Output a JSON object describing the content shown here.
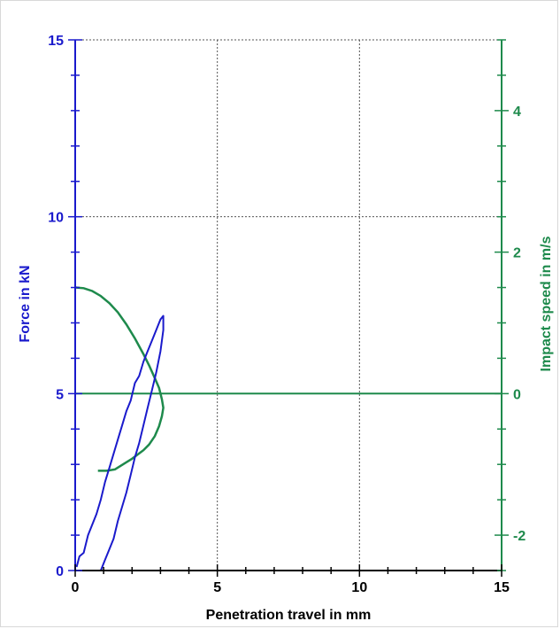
{
  "chart_data": {
    "type": "line",
    "title": "",
    "xlabel": "Penetration travel in mm",
    "ylabel": "Force in kN",
    "y2label": "Impact speed in m/s",
    "xlim": [
      0,
      15
    ],
    "ylim": [
      0,
      15
    ],
    "y2lim": [
      -2.5,
      5.0
    ],
    "x_ticks": [
      0,
      5,
      10,
      15
    ],
    "y_ticks": [
      0,
      5,
      10,
      15
    ],
    "y2_ticks": [
      -2,
      0,
      2,
      4
    ],
    "grid": true,
    "colors": {
      "force": "#1a1acc",
      "speed": "#1e8a4c",
      "grid": "#555555"
    },
    "series": [
      {
        "axis": "left",
        "x": [
          0.05,
          0.15,
          0.3,
          0.45,
          0.6,
          0.75,
          0.9,
          1.05,
          1.2,
          1.35,
          1.5,
          1.65,
          1.8,
          1.95,
          2.1,
          2.25,
          2.4,
          2.55,
          2.7,
          2.85,
          3.0,
          3.1,
          3.1,
          3.0,
          2.85,
          2.7,
          2.55,
          2.4,
          2.25,
          2.1,
          1.95,
          1.8,
          1.65,
          1.5,
          1.35,
          1.2,
          1.05,
          0.9
        ],
        "y": [
          0.1,
          0.4,
          0.5,
          1.0,
          1.3,
          1.6,
          2.0,
          2.5,
          2.9,
          3.3,
          3.7,
          4.1,
          4.5,
          4.8,
          5.3,
          5.5,
          5.9,
          6.2,
          6.5,
          6.8,
          7.1,
          7.2,
          6.8,
          6.2,
          5.6,
          5.1,
          4.6,
          4.1,
          3.6,
          3.2,
          2.7,
          2.2,
          1.8,
          1.4,
          0.9,
          0.6,
          0.3,
          0.0
        ]
      },
      {
        "axis": "right",
        "x": [
          0.0,
          0.3,
          0.6,
          0.9,
          1.2,
          1.5,
          1.8,
          2.1,
          2.4,
          2.6,
          2.8,
          2.95,
          3.05,
          3.1,
          3.05,
          2.95,
          2.8,
          2.6,
          2.4,
          2.2,
          2.0,
          1.8,
          1.6,
          1.4,
          1.25,
          1.1,
          0.8
        ],
        "y": [
          1.5,
          1.49,
          1.45,
          1.38,
          1.28,
          1.15,
          0.98,
          0.78,
          0.56,
          0.4,
          0.22,
          0.08,
          -0.08,
          -0.2,
          -0.32,
          -0.46,
          -0.6,
          -0.72,
          -0.8,
          -0.86,
          -0.92,
          -0.97,
          -1.02,
          -1.07,
          -1.08,
          -1.09,
          -1.09
        ]
      },
      {
        "axis": "right",
        "x": [
          0.0,
          15.0
        ],
        "y": [
          0.0,
          0.0
        ]
      }
    ]
  }
}
